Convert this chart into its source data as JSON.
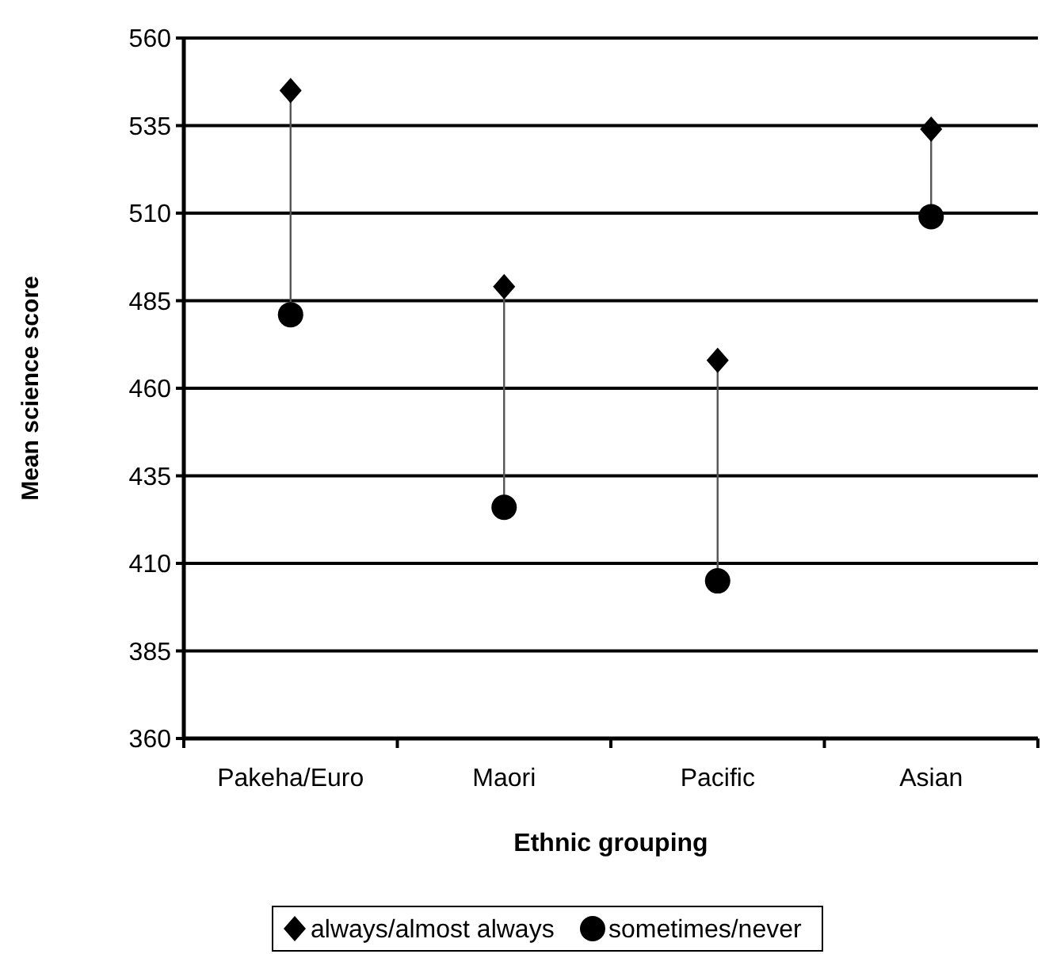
{
  "chart_data": {
    "type": "scatter",
    "xlabel": "Ethnic grouping",
    "ylabel": "Mean science score",
    "categories": [
      "Pakeha/Euro",
      "Maori",
      "Pacific",
      "Asian"
    ],
    "series": [
      {
        "name": "always/almost always",
        "color": "#000000",
        "marker": "diamond",
        "values": [
          545,
          489,
          468,
          534
        ]
      },
      {
        "name": "sometimes/never",
        "color": "#000000",
        "marker": "circle",
        "values": [
          481,
          426,
          405,
          509
        ]
      }
    ],
    "ylim": [
      360,
      560
    ],
    "yticks": [
      360,
      385,
      410,
      435,
      460,
      485,
      510,
      535,
      560
    ],
    "grid": "y",
    "legend": "bottom"
  }
}
